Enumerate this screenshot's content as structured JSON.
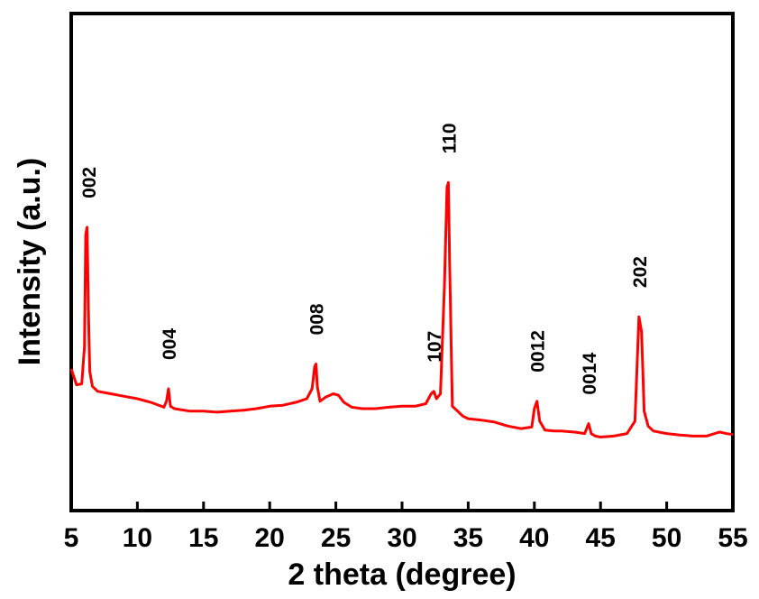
{
  "chart_data": {
    "type": "line",
    "title": "",
    "xlabel": "2 theta (degree)",
    "ylabel": "Intensity (a.u.)",
    "xlim": [
      5,
      55
    ],
    "ylim": [
      0,
      100
    ],
    "y_ticks_shown": false,
    "grid": false,
    "legend": "none",
    "x_ticks": [
      5,
      10,
      15,
      20,
      25,
      30,
      35,
      40,
      45,
      50,
      55
    ],
    "series": [
      {
        "color": "#ff0000",
        "x": [
          5.0,
          5.4,
          5.8,
          6.0,
          6.1,
          6.2,
          6.3,
          6.4,
          6.6,
          7.0,
          8.0,
          9.0,
          10.0,
          11.0,
          12.0,
          12.2,
          12.35,
          12.5,
          12.8,
          14.0,
          15.0,
          16.0,
          17.0,
          18.0,
          19.0,
          20.0,
          21.0,
          22.0,
          22.8,
          23.2,
          23.4,
          23.5,
          23.6,
          23.8,
          24.2,
          24.8,
          25.2,
          25.6,
          26.2,
          27.0,
          28.0,
          29.0,
          30.0,
          31.0,
          31.8,
          32.2,
          32.4,
          32.6,
          32.9,
          33.2,
          33.4,
          33.5,
          33.6,
          33.8,
          34.2,
          34.6,
          35.0,
          36.0,
          37.0,
          38.0,
          39.0,
          39.8,
          40.0,
          40.2,
          40.4,
          40.8,
          41.5,
          42.0,
          43.0,
          43.8,
          44.1,
          44.3,
          44.6,
          45.0,
          46.0,
          47.0,
          47.6,
          47.9,
          48.1,
          48.3,
          48.6,
          49.0,
          50.0,
          51.0,
          52.0,
          53.0,
          54.0,
          54.5,
          55.0
        ],
        "y": [
          28.5,
          25.3,
          25.5,
          33.0,
          55.5,
          57.0,
          40.0,
          28.0,
          25.0,
          24.0,
          23.5,
          23.0,
          22.5,
          21.8,
          20.8,
          22.0,
          24.5,
          21.0,
          20.5,
          20.0,
          20.0,
          19.8,
          20.0,
          20.2,
          20.5,
          21.0,
          21.2,
          21.8,
          22.5,
          24.5,
          29.0,
          29.5,
          25.0,
          22.0,
          22.8,
          23.5,
          23.2,
          21.8,
          20.8,
          20.5,
          20.5,
          20.8,
          21.0,
          21.0,
          21.5,
          23.5,
          24.0,
          22.5,
          23.5,
          45.0,
          65.0,
          66.0,
          50.0,
          21.0,
          20.0,
          19.0,
          18.5,
          18.2,
          17.8,
          17.0,
          16.5,
          16.8,
          20.5,
          22.0,
          18.0,
          16.2,
          16.0,
          16.0,
          15.8,
          15.5,
          17.5,
          15.5,
          15.0,
          14.8,
          15.0,
          15.5,
          18.0,
          39.0,
          36.0,
          20.0,
          17.0,
          16.0,
          15.5,
          15.2,
          15.0,
          15.0,
          15.8,
          15.5,
          15.3
        ]
      }
    ],
    "annotations": [
      {
        "text": "002",
        "x": 6.3,
        "y": 57.0
      },
      {
        "text": "004",
        "x": 12.35,
        "y": 24.5
      },
      {
        "text": "008",
        "x": 23.5,
        "y": 29.5
      },
      {
        "text": "107",
        "x": 32.4,
        "y": 24.0
      },
      {
        "text": "110",
        "x": 33.5,
        "y": 66.0
      },
      {
        "text": "0012",
        "x": 40.2,
        "y": 22.0
      },
      {
        "text": "0014",
        "x": 44.1,
        "y": 17.5
      },
      {
        "text": "202",
        "x": 47.9,
        "y": 39.0
      }
    ]
  }
}
